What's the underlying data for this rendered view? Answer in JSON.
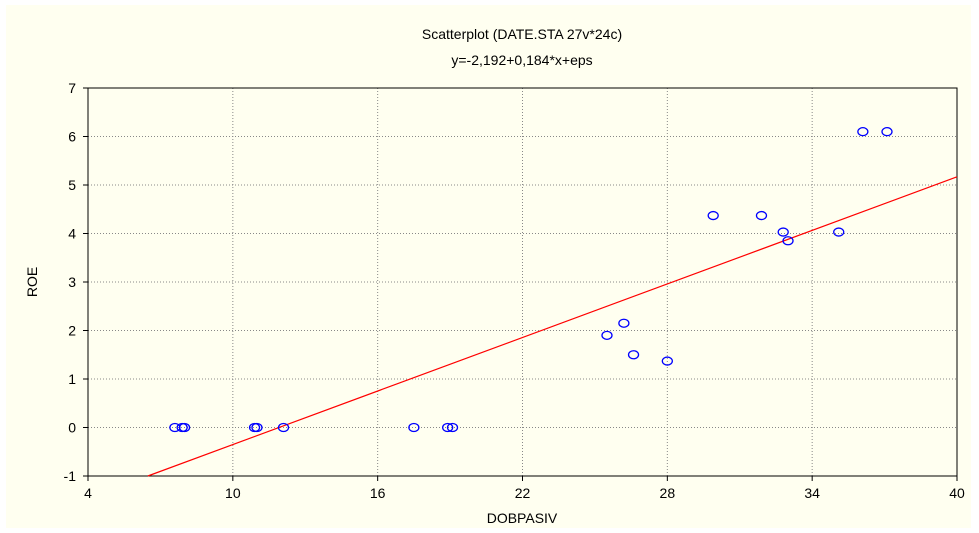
{
  "chart_data": {
    "type": "scatter",
    "title": "Scatterplot (DATE.STA 27v*24c)",
    "subtitle": "y=-2,192+0,184*x+eps",
    "xlabel": "DOBPASIV",
    "ylabel": "ROE",
    "xlim": [
      4,
      40
    ],
    "ylim": [
      -1,
      7
    ],
    "xticks": [
      "4",
      "10",
      "16",
      "22",
      "28",
      "34",
      "40"
    ],
    "yticks": [
      "-1",
      "0",
      "1",
      "2",
      "3",
      "4",
      "5",
      "6",
      "7"
    ],
    "grid": true,
    "points": [
      {
        "x": 7.6,
        "y": 0
      },
      {
        "x": 7.9,
        "y": 0
      },
      {
        "x": 8.0,
        "y": 0
      },
      {
        "x": 10.9,
        "y": 0
      },
      {
        "x": 11.0,
        "y": 0
      },
      {
        "x": 12.1,
        "y": 0
      },
      {
        "x": 17.5,
        "y": 0
      },
      {
        "x": 18.9,
        "y": 0
      },
      {
        "x": 19.1,
        "y": 0
      },
      {
        "x": 25.5,
        "y": 1.9
      },
      {
        "x": 26.2,
        "y": 2.15
      },
      {
        "x": 26.6,
        "y": 1.5
      },
      {
        "x": 28.0,
        "y": 1.37
      },
      {
        "x": 29.9,
        "y": 4.37
      },
      {
        "x": 31.9,
        "y": 4.37
      },
      {
        "x": 32.8,
        "y": 4.03
      },
      {
        "x": 33.0,
        "y": 3.85
      },
      {
        "x": 35.1,
        "y": 4.03
      },
      {
        "x": 36.1,
        "y": 6.1
      },
      {
        "x": 37.1,
        "y": 6.1
      }
    ],
    "fit": {
      "intercept": -2.192,
      "slope": 0.184
    },
    "colors": {
      "points": "#0000ff",
      "fit_line": "#ff0000",
      "grid": "#888888",
      "background": "#fffff0"
    }
  }
}
